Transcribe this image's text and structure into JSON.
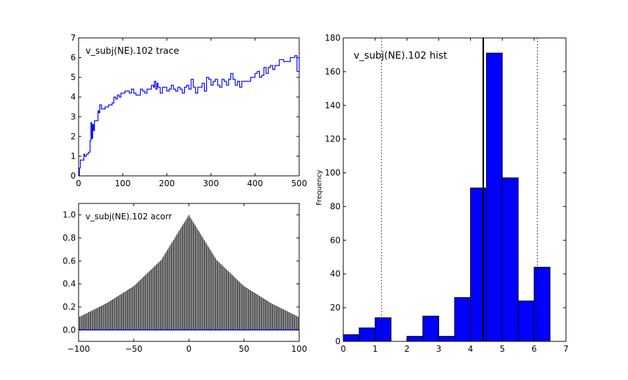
{
  "chart_data": [
    {
      "type": "line",
      "title": "v_subj(NE).102 trace",
      "xlabel": "",
      "ylabel": "",
      "xlim": [
        0,
        500
      ],
      "ylim": [
        0,
        7
      ],
      "x_ticks": [
        "0",
        "100",
        "200",
        "300",
        "400",
        "500"
      ],
      "y_ticks": [
        "0",
        "1",
        "2",
        "3",
        "4",
        "5",
        "6",
        "7"
      ],
      "grid": false,
      "series": [
        {
          "color": "#0000ff",
          "x": [
            0,
            2,
            4,
            8,
            12,
            14,
            18,
            22,
            26,
            28,
            30,
            32,
            34,
            36,
            40,
            44,
            46,
            48,
            52,
            56,
            60,
            64,
            68,
            72,
            76,
            80,
            84,
            88,
            92,
            96,
            100,
            105,
            110,
            115,
            120,
            125,
            130,
            135,
            140,
            145,
            150,
            155,
            160,
            165,
            170,
            172,
            175,
            178,
            180,
            185,
            190,
            195,
            200,
            205,
            210,
            215,
            220,
            225,
            230,
            235,
            240,
            245,
            250,
            255,
            260,
            265,
            270,
            275,
            280,
            285,
            290,
            295,
            300,
            305,
            310,
            315,
            320,
            325,
            330,
            335,
            340,
            345,
            350,
            355,
            360,
            365,
            370,
            375,
            380,
            385,
            390,
            395,
            400,
            405,
            410,
            415,
            420,
            425,
            430,
            435,
            440,
            445,
            450,
            455,
            460,
            465,
            470,
            475,
            480,
            485,
            490,
            495,
            500
          ],
          "y": [
            0.0,
            0.4,
            0.8,
            0.8,
            1.1,
            1.0,
            1.1,
            1.2,
            1.8,
            2.7,
            1.9,
            2.6,
            2.3,
            2.8,
            2.8,
            3.3,
            3.2,
            3.6,
            3.4,
            3.4,
            3.5,
            3.5,
            3.6,
            3.6,
            3.7,
            4.0,
            3.9,
            4.1,
            4.0,
            4.2,
            4.2,
            4.3,
            4.3,
            4.2,
            4.4,
            4.2,
            4.1,
            4.1,
            4.4,
            4.3,
            4.2,
            4.4,
            4.4,
            4.6,
            4.5,
            4.8,
            4.4,
            4.7,
            4.5,
            4.2,
            4.5,
            4.5,
            4.3,
            4.4,
            4.6,
            4.4,
            4.3,
            4.5,
            4.4,
            4.2,
            4.5,
            4.6,
            4.4,
            4.9,
            4.5,
            4.2,
            4.5,
            4.5,
            4.7,
            4.3,
            5.0,
            4.9,
            4.6,
            4.8,
            4.9,
            4.6,
            4.5,
            4.9,
            4.8,
            4.6,
            4.9,
            5.2,
            4.9,
            4.6,
            4.8,
            4.5,
            4.8,
            4.8,
            4.8,
            4.8,
            5.0,
            5.0,
            5.2,
            5.3,
            5.0,
            5.1,
            5.5,
            5.2,
            5.5,
            5.6,
            5.4,
            5.6,
            5.6,
            5.9,
            5.9,
            5.8,
            5.8,
            5.8,
            6.0,
            6.0,
            6.1,
            5.3,
            6.0
          ]
        }
      ]
    },
    {
      "type": "bar",
      "title": "v_subj(NE).102 acorr",
      "xlabel": "",
      "ylabel": "",
      "xlim": [
        -100,
        100
      ],
      "ylim": [
        -0.1,
        1.1
      ],
      "x_ticks": [
        "−100",
        "−50",
        "0",
        "50",
        "100"
      ],
      "y_ticks": [
        "0.0",
        "0.2",
        "0.4",
        "0.6",
        "0.8",
        "1.0"
      ],
      "lags": [
        -100,
        100
      ],
      "values_at": {
        "lag_0": 1.0,
        "lag_25": 0.61,
        "lag_50": 0.38,
        "lag_75": 0.23,
        "lag_100": 0.11
      },
      "grid": false
    },
    {
      "type": "bar",
      "title": "v_subj(NE).102 hist",
      "xlabel": "",
      "ylabel": "Frequency",
      "xlim": [
        0,
        7
      ],
      "ylim": [
        0,
        180
      ],
      "x_ticks": [
        "0",
        "1",
        "2",
        "3",
        "4",
        "5",
        "6",
        "7"
      ],
      "y_ticks": [
        "0",
        "20",
        "40",
        "60",
        "80",
        "100",
        "120",
        "140",
        "160",
        "180"
      ],
      "bin_edges": [
        0.0,
        0.5,
        1.0,
        1.5,
        2.0,
        2.5,
        3.0,
        3.5,
        4.0,
        4.5,
        5.0,
        5.5,
        6.0
      ],
      "bin_counts": [
        4,
        8,
        14,
        0,
        3,
        15,
        3,
        26,
        91,
        171,
        97,
        24,
        44
      ],
      "mean": 4.4,
      "ci_lower": 1.2,
      "ci_upper": 6.1,
      "bar_color": "#0000ff",
      "grid": false
    }
  ]
}
